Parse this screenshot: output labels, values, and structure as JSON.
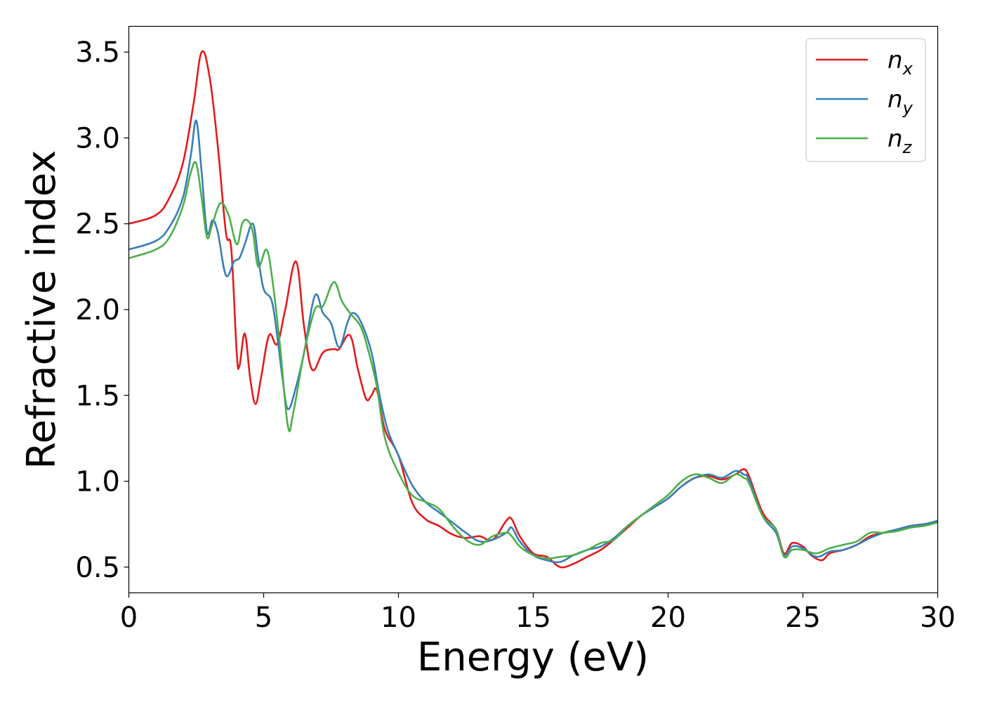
{
  "chart_data": {
    "type": "line",
    "title": "",
    "xlabel": "Energy (eV)",
    "ylabel": "Refractive index",
    "xlim": [
      0,
      30
    ],
    "ylim": [
      0.35,
      3.65
    ],
    "xticks": [
      0,
      5,
      10,
      15,
      20,
      25,
      30
    ],
    "xtick_labels": [
      "0",
      "5",
      "10",
      "15",
      "20",
      "25",
      "30"
    ],
    "yticks": [
      0.5,
      1.0,
      1.5,
      2.0,
      2.5,
      3.0,
      3.5
    ],
    "ytick_labels": [
      "0.5",
      "1.0",
      "1.5",
      "2.0",
      "2.5",
      "3.0",
      "3.5"
    ],
    "grid": false,
    "legend_position": "top-right",
    "series": [
      {
        "name": "n_x",
        "legend_main": "n",
        "legend_sub": "x",
        "color": "#e41a1c",
        "points": [
          [
            0,
            2.5
          ],
          [
            1,
            2.55
          ],
          [
            1.5,
            2.65
          ],
          [
            2,
            2.85
          ],
          [
            2.4,
            3.2
          ],
          [
            2.7,
            3.5
          ],
          [
            3.0,
            3.35
          ],
          [
            3.3,
            2.95
          ],
          [
            3.6,
            2.45
          ],
          [
            3.8,
            2.35
          ],
          [
            4.0,
            1.75
          ],
          [
            4.1,
            1.67
          ],
          [
            4.3,
            1.86
          ],
          [
            4.5,
            1.6
          ],
          [
            4.7,
            1.45
          ],
          [
            4.9,
            1.6
          ],
          [
            5.2,
            1.85
          ],
          [
            5.5,
            1.8
          ],
          [
            5.8,
            2.0
          ],
          [
            6.2,
            2.28
          ],
          [
            6.5,
            1.9
          ],
          [
            6.8,
            1.65
          ],
          [
            7.2,
            1.75
          ],
          [
            7.6,
            1.77
          ],
          [
            7.8,
            1.77
          ],
          [
            8.2,
            1.85
          ],
          [
            8.5,
            1.65
          ],
          [
            8.8,
            1.48
          ],
          [
            9.0,
            1.5
          ],
          [
            9.2,
            1.53
          ],
          [
            9.5,
            1.3
          ],
          [
            10,
            1.15
          ],
          [
            10.5,
            0.88
          ],
          [
            11,
            0.78
          ],
          [
            11.5,
            0.74
          ],
          [
            12,
            0.69
          ],
          [
            12.5,
            0.67
          ],
          [
            13,
            0.68
          ],
          [
            13.5,
            0.66
          ],
          [
            14,
            0.77
          ],
          [
            14.2,
            0.78
          ],
          [
            14.5,
            0.68
          ],
          [
            15,
            0.58
          ],
          [
            15.5,
            0.56
          ],
          [
            16,
            0.5
          ],
          [
            16.5,
            0.52
          ],
          [
            17,
            0.56
          ],
          [
            17.5,
            0.6
          ],
          [
            18,
            0.66
          ],
          [
            18.5,
            0.73
          ],
          [
            19,
            0.8
          ],
          [
            19.5,
            0.85
          ],
          [
            20,
            0.9
          ],
          [
            20.5,
            0.97
          ],
          [
            21,
            1.02
          ],
          [
            21.5,
            1.03
          ],
          [
            22,
            1.01
          ],
          [
            22.5,
            1.04
          ],
          [
            22.8,
            1.07
          ],
          [
            23,
            1.03
          ],
          [
            23.5,
            0.82
          ],
          [
            24,
            0.72
          ],
          [
            24.3,
            0.58
          ],
          [
            24.6,
            0.64
          ],
          [
            25,
            0.62
          ],
          [
            25.3,
            0.57
          ],
          [
            25.7,
            0.54
          ],
          [
            26,
            0.58
          ],
          [
            26.5,
            0.6
          ],
          [
            27,
            0.63
          ],
          [
            27.5,
            0.68
          ],
          [
            28,
            0.7
          ],
          [
            28.5,
            0.72
          ],
          [
            29,
            0.74
          ],
          [
            29.5,
            0.75
          ],
          [
            30,
            0.76
          ]
        ]
      },
      {
        "name": "n_y",
        "legend_main": "n",
        "legend_sub": "y",
        "color": "#377eb8",
        "points": [
          [
            0,
            2.35
          ],
          [
            1,
            2.4
          ],
          [
            1.5,
            2.48
          ],
          [
            2,
            2.65
          ],
          [
            2.3,
            2.9
          ],
          [
            2.5,
            3.1
          ],
          [
            2.7,
            2.8
          ],
          [
            2.9,
            2.45
          ],
          [
            3.1,
            2.52
          ],
          [
            3.3,
            2.45
          ],
          [
            3.6,
            2.2
          ],
          [
            3.9,
            2.28
          ],
          [
            4.1,
            2.3
          ],
          [
            4.3,
            2.38
          ],
          [
            4.6,
            2.5
          ],
          [
            4.8,
            2.3
          ],
          [
            5.0,
            2.12
          ],
          [
            5.3,
            2.05
          ],
          [
            5.5,
            1.85
          ],
          [
            5.7,
            1.6
          ],
          [
            5.9,
            1.42
          ],
          [
            6.2,
            1.55
          ],
          [
            6.5,
            1.75
          ],
          [
            6.9,
            2.08
          ],
          [
            7.2,
            1.98
          ],
          [
            7.5,
            1.92
          ],
          [
            7.8,
            1.78
          ],
          [
            8.1,
            1.92
          ],
          [
            8.3,
            1.98
          ],
          [
            8.6,
            1.93
          ],
          [
            9.0,
            1.75
          ],
          [
            9.3,
            1.5
          ],
          [
            9.6,
            1.3
          ],
          [
            10,
            1.15
          ],
          [
            10.5,
            0.98
          ],
          [
            11,
            0.88
          ],
          [
            11.5,
            0.82
          ],
          [
            12,
            0.76
          ],
          [
            12.5,
            0.7
          ],
          [
            13,
            0.65
          ],
          [
            13.5,
            0.66
          ],
          [
            14,
            0.7
          ],
          [
            14.2,
            0.73
          ],
          [
            14.5,
            0.65
          ],
          [
            15,
            0.57
          ],
          [
            15.5,
            0.54
          ],
          [
            16,
            0.53
          ],
          [
            16.5,
            0.57
          ],
          [
            17,
            0.6
          ],
          [
            17.5,
            0.62
          ],
          [
            18,
            0.67
          ],
          [
            18.5,
            0.74
          ],
          [
            19,
            0.8
          ],
          [
            19.5,
            0.85
          ],
          [
            20,
            0.9
          ],
          [
            20.5,
            0.97
          ],
          [
            21,
            1.02
          ],
          [
            21.5,
            1.04
          ],
          [
            22,
            1.02
          ],
          [
            22.5,
            1.06
          ],
          [
            22.8,
            1.04
          ],
          [
            23,
            1.01
          ],
          [
            23.5,
            0.8
          ],
          [
            24,
            0.7
          ],
          [
            24.3,
            0.57
          ],
          [
            24.6,
            0.62
          ],
          [
            25,
            0.61
          ],
          [
            25.5,
            0.56
          ],
          [
            26,
            0.59
          ],
          [
            26.5,
            0.6
          ],
          [
            27,
            0.63
          ],
          [
            27.5,
            0.67
          ],
          [
            28,
            0.7
          ],
          [
            28.5,
            0.72
          ],
          [
            29,
            0.74
          ],
          [
            29.5,
            0.75
          ],
          [
            30,
            0.77
          ]
        ]
      },
      {
        "name": "n_z",
        "legend_main": "n",
        "legend_sub": "z",
        "color": "#4daf4a",
        "points": [
          [
            0,
            2.3
          ],
          [
            1,
            2.35
          ],
          [
            1.5,
            2.42
          ],
          [
            2,
            2.6
          ],
          [
            2.3,
            2.8
          ],
          [
            2.5,
            2.85
          ],
          [
            2.7,
            2.65
          ],
          [
            2.9,
            2.42
          ],
          [
            3.1,
            2.5
          ],
          [
            3.4,
            2.62
          ],
          [
            3.7,
            2.55
          ],
          [
            4.0,
            2.38
          ],
          [
            4.2,
            2.5
          ],
          [
            4.4,
            2.52
          ],
          [
            4.6,
            2.45
          ],
          [
            4.8,
            2.25
          ],
          [
            5.1,
            2.35
          ],
          [
            5.3,
            2.2
          ],
          [
            5.6,
            1.8
          ],
          [
            5.9,
            1.32
          ],
          [
            6.1,
            1.4
          ],
          [
            6.5,
            1.75
          ],
          [
            6.9,
            2.0
          ],
          [
            7.2,
            2.02
          ],
          [
            7.6,
            2.16
          ],
          [
            7.9,
            2.05
          ],
          [
            8.2,
            1.98
          ],
          [
            8.6,
            1.9
          ],
          [
            8.9,
            1.75
          ],
          [
            9.2,
            1.55
          ],
          [
            9.5,
            1.25
          ],
          [
            10,
            1.05
          ],
          [
            10.5,
            0.92
          ],
          [
            11,
            0.88
          ],
          [
            11.5,
            0.84
          ],
          [
            12,
            0.74
          ],
          [
            12.5,
            0.66
          ],
          [
            13,
            0.63
          ],
          [
            13.5,
            0.68
          ],
          [
            14,
            0.7
          ],
          [
            14.2,
            0.68
          ],
          [
            14.5,
            0.62
          ],
          [
            15,
            0.57
          ],
          [
            15.5,
            0.55
          ],
          [
            16,
            0.56
          ],
          [
            16.5,
            0.57
          ],
          [
            17,
            0.6
          ],
          [
            17.5,
            0.64
          ],
          [
            18,
            0.66
          ],
          [
            18.5,
            0.74
          ],
          [
            19,
            0.8
          ],
          [
            19.5,
            0.86
          ],
          [
            20,
            0.92
          ],
          [
            20.5,
            1.0
          ],
          [
            21,
            1.04
          ],
          [
            21.5,
            1.02
          ],
          [
            22,
            0.99
          ],
          [
            22.5,
            1.04
          ],
          [
            22.8,
            1.02
          ],
          [
            23,
            0.99
          ],
          [
            23.5,
            0.8
          ],
          [
            24,
            0.72
          ],
          [
            24.3,
            0.56
          ],
          [
            24.6,
            0.6
          ],
          [
            25,
            0.6
          ],
          [
            25.5,
            0.58
          ],
          [
            26,
            0.61
          ],
          [
            26.5,
            0.63
          ],
          [
            27,
            0.65
          ],
          [
            27.5,
            0.7
          ],
          [
            28,
            0.7
          ],
          [
            28.5,
            0.71
          ],
          [
            29,
            0.73
          ],
          [
            29.5,
            0.74
          ],
          [
            30,
            0.76
          ]
        ]
      }
    ]
  }
}
